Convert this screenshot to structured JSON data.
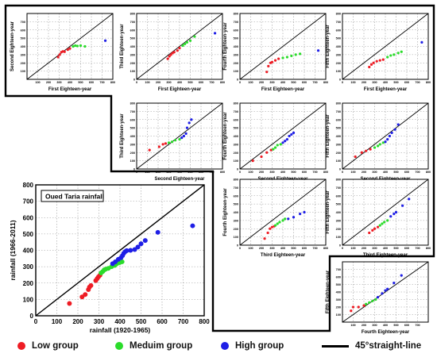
{
  "chart_data": [
    {
      "type": "scatter",
      "panel": "main",
      "title": "Oued Taria rainfall",
      "xlabel": "rainfall (1920-1965)",
      "ylabel": "rainfall (1966-2011)",
      "xlim": [
        0,
        800
      ],
      "ylim": [
        0,
        800
      ],
      "xticks": [
        0,
        100,
        200,
        300,
        400,
        500,
        600,
        700,
        800
      ],
      "yticks": [
        0,
        100,
        200,
        300,
        400,
        500,
        600,
        700,
        800
      ],
      "reference_line": "45° straight-line",
      "series": [
        {
          "name": "Low group",
          "color": "#ee1c24",
          "points": [
            [
              160,
              75
            ],
            [
              220,
              115
            ],
            [
              235,
              130
            ],
            [
              250,
              160
            ],
            [
              255,
              175
            ],
            [
              262,
              185
            ],
            [
              285,
              215
            ],
            [
              292,
              228
            ],
            [
              298,
              238
            ],
            [
              305,
              248
            ]
          ]
        },
        {
          "name": "Meduim group",
          "color": "#2bdc2b",
          "points": [
            [
              310,
              262
            ],
            [
              318,
              270
            ],
            [
              325,
              280
            ],
            [
              332,
              285
            ],
            [
              345,
              290
            ],
            [
              360,
              300
            ],
            [
              375,
              308
            ],
            [
              385,
              318
            ],
            [
              398,
              325
            ],
            [
              410,
              330
            ]
          ]
        },
        {
          "name": "High group",
          "color": "#1f1fe6",
          "points": [
            [
              365,
              318
            ],
            [
              378,
              330
            ],
            [
              392,
              345
            ],
            [
              405,
              355
            ],
            [
              412,
              368
            ],
            [
              418,
              382
            ],
            [
              425,
              392
            ],
            [
              432,
              398
            ],
            [
              450,
              400
            ],
            [
              470,
              405
            ],
            [
              485,
              420
            ],
            [
              500,
              440
            ],
            [
              520,
              460
            ],
            [
              580,
              510
            ],
            [
              745,
              550
            ]
          ]
        }
      ]
    },
    {
      "type": "scatter",
      "panel": "1-2",
      "xlabel": "First Eighteen-year",
      "ylabel": "Second Eighteen-year",
      "xlim": [
        0,
        800
      ],
      "ylim": [
        0,
        800
      ],
      "xticks": [
        100,
        200,
        300,
        400,
        500,
        600,
        700,
        800
      ],
      "yticks": [
        100,
        200,
        300,
        400,
        500,
        600,
        700
      ],
      "series": [
        {
          "name": "Low group",
          "points": [
            [
              290,
              270
            ],
            [
              305,
              300
            ],
            [
              320,
              330
            ],
            [
              335,
              340
            ],
            [
              350,
              335
            ],
            [
              380,
              360
            ],
            [
              400,
              375
            ]
          ]
        },
        {
          "name": "Meduim group",
          "points": [
            [
              430,
              400
            ],
            [
              450,
              410
            ],
            [
              470,
              405
            ],
            [
              500,
              410
            ],
            [
              540,
              400
            ]
          ]
        },
        {
          "name": "High group",
          "points": [
            [
              730,
              470
            ]
          ]
        }
      ]
    },
    {
      "type": "scatter",
      "panel": "1-3",
      "xlabel": "First Eighteen-year",
      "ylabel": "Third Eighteen-year",
      "xlim": [
        0,
        800
      ],
      "ylim": [
        0,
        800
      ],
      "series": [
        {
          "name": "Low group",
          "points": [
            [
              290,
              250
            ],
            [
              305,
              280
            ],
            [
              320,
              300
            ],
            [
              335,
              320
            ],
            [
              350,
              330
            ],
            [
              380,
              350
            ],
            [
              400,
              380
            ]
          ]
        },
        {
          "name": "Meduim group",
          "points": [
            [
              430,
              410
            ],
            [
              450,
              430
            ],
            [
              470,
              450
            ],
            [
              500,
              470
            ],
            [
              540,
              520
            ]
          ]
        },
        {
          "name": "High group",
          "points": [
            [
              730,
              560
            ]
          ]
        }
      ]
    },
    {
      "type": "scatter",
      "panel": "1-4",
      "xlabel": "First Eighteen-year",
      "ylabel": "Fourth Eighteen-year",
      "xlim": [
        0,
        800
      ],
      "ylim": [
        0,
        800
      ],
      "series": [
        {
          "name": "Low group",
          "points": [
            [
              250,
              90
            ],
            [
              265,
              160
            ],
            [
              285,
              200
            ],
            [
              300,
              210
            ],
            [
              330,
              230
            ],
            [
              360,
              250
            ]
          ]
        },
        {
          "name": "Meduim group",
          "points": [
            [
              400,
              260
            ],
            [
              440,
              270
            ],
            [
              480,
              285
            ],
            [
              520,
              300
            ],
            [
              560,
              310
            ]
          ]
        },
        {
          "name": "High group",
          "points": [
            [
              730,
              350
            ]
          ]
        }
      ]
    },
    {
      "type": "scatter",
      "panel": "1-5",
      "xlabel": "First Eighteen-year",
      "ylabel": "Fifth Eighteen-year",
      "xlim": [
        0,
        800
      ],
      "ylim": [
        0,
        800
      ],
      "series": [
        {
          "name": "Low group",
          "points": [
            [
              250,
              150
            ],
            [
              270,
              180
            ],
            [
              290,
              200
            ],
            [
              320,
              220
            ],
            [
              350,
              230
            ],
            [
              380,
              240
            ]
          ]
        },
        {
          "name": "Meduim group",
          "points": [
            [
              420,
              270
            ],
            [
              450,
              290
            ],
            [
              480,
              300
            ],
            [
              520,
              320
            ],
            [
              550,
              335
            ]
          ]
        },
        {
          "name": "High group",
          "points": [
            [
              740,
              450
            ]
          ]
        }
      ]
    },
    {
      "type": "scatter",
      "panel": "2-3",
      "xlabel": "Second Eighteen-year",
      "ylabel": "Third Eighteen-year",
      "xlim": [
        0,
        800
      ],
      "ylim": [
        0,
        800
      ],
      "series": [
        {
          "name": "Low group",
          "points": [
            [
              120,
              230
            ],
            [
              210,
              270
            ],
            [
              245,
              300
            ],
            [
              270,
              310
            ]
          ]
        },
        {
          "name": "Meduim group",
          "points": [
            [
              300,
              320
            ],
            [
              330,
              330
            ],
            [
              360,
              350
            ],
            [
              400,
              360
            ]
          ]
        },
        {
          "name": "High group",
          "points": [
            [
              420,
              380
            ],
            [
              440,
              400
            ],
            [
              460,
              430
            ],
            [
              470,
              500
            ],
            [
              490,
              560
            ],
            [
              510,
              600
            ]
          ]
        }
      ]
    },
    {
      "type": "scatter",
      "panel": "2-4",
      "xlabel": "Second Eighteen-year",
      "ylabel": "Fourth Eighteen-year",
      "xlim": [
        0,
        800
      ],
      "ylim": [
        0,
        800
      ],
      "series": [
        {
          "name": "Low group",
          "points": [
            [
              120,
              100
            ],
            [
              200,
              150
            ],
            [
              250,
              200
            ],
            [
              290,
              230
            ]
          ]
        },
        {
          "name": "Meduim group",
          "points": [
            [
              310,
              240
            ],
            [
              330,
              260
            ],
            [
              350,
              290
            ],
            [
              380,
              300
            ]
          ]
        },
        {
          "name": "High group",
          "points": [
            [
              400,
              320
            ],
            [
              420,
              340
            ],
            [
              440,
              360
            ],
            [
              460,
              400
            ],
            [
              480,
              420
            ],
            [
              500,
              440
            ]
          ]
        }
      ]
    },
    {
      "type": "scatter",
      "panel": "2-5",
      "xlabel": "Second Eighteen-year",
      "ylabel": "Fifth Eighteen-year",
      "xlim": [
        0,
        800
      ],
      "ylim": [
        0,
        800
      ],
      "series": [
        {
          "name": "Low group",
          "points": [
            [
              120,
              150
            ],
            [
              180,
              200
            ],
            [
              220,
              220
            ],
            [
              260,
              240
            ]
          ]
        },
        {
          "name": "Meduim group",
          "points": [
            [
              300,
              260
            ],
            [
              330,
              280
            ],
            [
              350,
              300
            ],
            [
              380,
              320
            ]
          ]
        },
        {
          "name": "High group",
          "points": [
            [
              400,
              330
            ],
            [
              420,
              360
            ],
            [
              440,
              400
            ],
            [
              460,
              440
            ],
            [
              490,
              480
            ],
            [
              520,
              540
            ]
          ]
        }
      ]
    },
    {
      "type": "scatter",
      "panel": "3-4",
      "xlabel": "Third Eighteen-year",
      "ylabel": "Fourth Eighteen-year",
      "xlim": [
        0,
        800
      ],
      "ylim": [
        0,
        800
      ],
      "series": [
        {
          "name": "Low group",
          "points": [
            [
              230,
              80
            ],
            [
              260,
              150
            ],
            [
              280,
              200
            ],
            [
              300,
              220
            ],
            [
              320,
              230
            ]
          ]
        },
        {
          "name": "Meduim group",
          "points": [
            [
              330,
              240
            ],
            [
              350,
              260
            ],
            [
              370,
              280
            ],
            [
              400,
              300
            ],
            [
              420,
              320
            ]
          ]
        },
        {
          "name": "High group",
          "points": [
            [
              450,
              320
            ],
            [
              500,
              340
            ],
            [
              560,
              380
            ],
            [
              600,
              400
            ]
          ]
        }
      ]
    },
    {
      "type": "scatter",
      "panel": "3-5",
      "xlabel": "Third Eighteen-year",
      "ylabel": "Fifth Eighteen-year",
      "xlim": [
        0,
        800
      ],
      "ylim": [
        0,
        800
      ],
      "series": [
        {
          "name": "Low group",
          "points": [
            [
              250,
              150
            ],
            [
              280,
              180
            ],
            [
              300,
              200
            ],
            [
              330,
              220
            ]
          ]
        },
        {
          "name": "Meduim group",
          "points": [
            [
              350,
              240
            ],
            [
              370,
              260
            ],
            [
              390,
              280
            ],
            [
              420,
              300
            ]
          ]
        },
        {
          "name": "High group",
          "points": [
            [
              450,
              350
            ],
            [
              480,
              380
            ],
            [
              500,
              400
            ],
            [
              560,
              480
            ],
            [
              620,
              560
            ]
          ]
        }
      ]
    },
    {
      "type": "scatter",
      "panel": "4-5",
      "xlabel": "Fourth Eighteen-year",
      "ylabel": "Fifth Eighteen-year",
      "xlim": [
        0,
        800
      ],
      "ylim": [
        0,
        800
      ],
      "xticks": [
        100,
        200,
        300,
        400,
        500,
        600,
        700
      ],
      "yticks": [
        100,
        200,
        300,
        400,
        500,
        600,
        700
      ],
      "series": [
        {
          "name": "Low group",
          "points": [
            [
              80,
              150
            ],
            [
              100,
              200
            ],
            [
              150,
              200
            ],
            [
              200,
              220
            ]
          ]
        },
        {
          "name": "Meduim group",
          "points": [
            [
              220,
              240
            ],
            [
              250,
              260
            ],
            [
              280,
              280
            ],
            [
              310,
              300
            ]
          ]
        },
        {
          "name": "High group",
          "points": [
            [
              330,
              330
            ],
            [
              370,
              380
            ],
            [
              400,
              420
            ],
            [
              420,
              440
            ],
            [
              480,
              520
            ],
            [
              550,
              620
            ]
          ]
        }
      ]
    }
  ],
  "legend": {
    "low": "Low group",
    "medium": "Meduim group",
    "high": "High group",
    "line": "45°straight-line"
  },
  "colors": {
    "low": "#ee1c24",
    "medium": "#2bdc2b",
    "high": "#1f1fe6",
    "line": "#000000"
  }
}
